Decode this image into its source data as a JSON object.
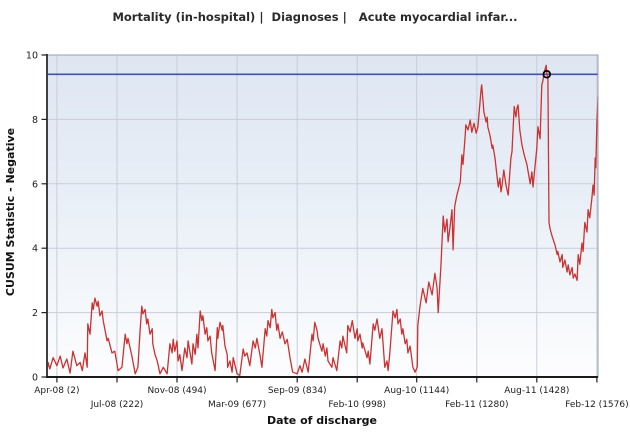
{
  "chart_data": {
    "type": "line",
    "title": "Mortality (in-hospital) |  Diagnoses |   Acute myocardial infar...",
    "xlabel": "Date of discharge",
    "ylabel": "CUSUM Statistic - Negative",
    "ylim": [
      0,
      10
    ],
    "y_ticks": [
      0,
      2,
      4,
      6,
      8,
      10
    ],
    "y_gridlines": [
      2,
      4,
      6,
      8
    ],
    "grid": true,
    "legend_position": "none",
    "plot_bg_gradient": [
      "#dee6f2",
      "#e9eff7",
      "#f5f8fb",
      "#fdfdfe"
    ],
    "grid_color": "#c8cdd9",
    "border_color": "#9aa2b2",
    "axis_line_color": "#1a1a1c",
    "label_color": "#1c1c1c",
    "title_color": "#2b2b2b",
    "x_ticks": [
      {
        "label": "Apr-08 (2)",
        "f": 0.018,
        "row": 0
      },
      {
        "label": "Jul-08 (222)",
        "f": 0.127,
        "row": 1
      },
      {
        "label": "Nov-08 (494)",
        "f": 0.236,
        "row": 0
      },
      {
        "label": "Mar-09 (677)",
        "f": 0.345,
        "row": 1
      },
      {
        "label": "Sep-09 (834)",
        "f": 0.454,
        "row": 0
      },
      {
        "label": "Feb-10 (998)",
        "f": 0.563,
        "row": 1
      },
      {
        "label": "Aug-10 (1144)",
        "f": 0.671,
        "row": 0
      },
      {
        "label": "Feb-11 (1280)",
        "f": 0.78,
        "row": 1
      },
      {
        "label": "Aug-11 (1428)",
        "f": 0.889,
        "row": 0
      },
      {
        "label": "Feb-12 (1576)",
        "f": 0.998,
        "row": 1
      }
    ],
    "threshold": {
      "value": 9.4,
      "color": "#4152ad"
    },
    "signal_point": {
      "x": 0.907,
      "value": 9.4,
      "marker": "open-circle",
      "color": "#000000"
    },
    "series": [
      {
        "color": "#cb3232",
        "points": [
          [
            0.0,
            0.2
          ],
          [
            0.002,
            0.45
          ],
          [
            0.005,
            0.25
          ],
          [
            0.011,
            0.6
          ],
          [
            0.018,
            0.35
          ],
          [
            0.024,
            0.65
          ],
          [
            0.029,
            0.28
          ],
          [
            0.036,
            0.56
          ],
          [
            0.042,
            0.12
          ],
          [
            0.047,
            0.8
          ],
          [
            0.054,
            0.35
          ],
          [
            0.06,
            0.45
          ],
          [
            0.064,
            0.2
          ],
          [
            0.069,
            0.75
          ],
          [
            0.073,
            0.3
          ],
          [
            0.074,
            1.65
          ],
          [
            0.078,
            1.33
          ],
          [
            0.082,
            2.3
          ],
          [
            0.084,
            2.1
          ],
          [
            0.087,
            2.45
          ],
          [
            0.091,
            2.2
          ],
          [
            0.093,
            2.35
          ],
          [
            0.096,
            1.9
          ],
          [
            0.1,
            2.05
          ],
          [
            0.102,
            1.75
          ],
          [
            0.109,
            1.12
          ],
          [
            0.111,
            1.2
          ],
          [
            0.118,
            0.75
          ],
          [
            0.123,
            0.8
          ],
          [
            0.129,
            0.2
          ],
          [
            0.136,
            0.3
          ],
          [
            0.142,
            1.33
          ],
          [
            0.145,
            1.03
          ],
          [
            0.147,
            1.2
          ],
          [
            0.154,
            0.65
          ],
          [
            0.16,
            0.1
          ],
          [
            0.165,
            0.3
          ],
          [
            0.169,
            1.45
          ],
          [
            0.172,
            2.2
          ],
          [
            0.174,
            1.96
          ],
          [
            0.178,
            2.1
          ],
          [
            0.181,
            1.65
          ],
          [
            0.183,
            1.8
          ],
          [
            0.187,
            1.33
          ],
          [
            0.191,
            1.5
          ],
          [
            0.192,
            1.03
          ],
          [
            0.196,
            0.7
          ],
          [
            0.2,
            0.5
          ],
          [
            0.205,
            0.1
          ],
          [
            0.211,
            0.3
          ],
          [
            0.218,
            0.1
          ],
          [
            0.223,
            1.03
          ],
          [
            0.227,
            0.75
          ],
          [
            0.229,
            1.17
          ],
          [
            0.232,
            0.8
          ],
          [
            0.236,
            1.12
          ],
          [
            0.238,
            0.5
          ],
          [
            0.241,
            0.7
          ],
          [
            0.245,
            0.2
          ],
          [
            0.25,
            0.9
          ],
          [
            0.254,
            0.6
          ],
          [
            0.256,
            1.12
          ],
          [
            0.263,
            0.4
          ],
          [
            0.265,
            1.03
          ],
          [
            0.269,
            0.7
          ],
          [
            0.272,
            1.33
          ],
          [
            0.274,
            0.9
          ],
          [
            0.278,
            2.05
          ],
          [
            0.281,
            1.75
          ],
          [
            0.283,
            1.9
          ],
          [
            0.287,
            1.33
          ],
          [
            0.29,
            1.53
          ],
          [
            0.292,
            1.12
          ],
          [
            0.296,
            1.27
          ],
          [
            0.299,
            0.75
          ],
          [
            0.305,
            0.2
          ],
          [
            0.309,
            1.53
          ],
          [
            0.31,
            1.2
          ],
          [
            0.314,
            1.7
          ],
          [
            0.318,
            1.45
          ],
          [
            0.319,
            1.6
          ],
          [
            0.323,
            0.96
          ],
          [
            0.327,
            0.7
          ],
          [
            0.328,
            0.3
          ],
          [
            0.332,
            0.5
          ],
          [
            0.336,
            0.15
          ],
          [
            0.338,
            0.6
          ],
          [
            0.345,
            0.1
          ],
          [
            0.35,
            0.05
          ],
          [
            0.356,
            0.87
          ],
          [
            0.359,
            0.65
          ],
          [
            0.363,
            0.75
          ],
          [
            0.368,
            0.35
          ],
          [
            0.374,
            1.12
          ],
          [
            0.378,
            0.9
          ],
          [
            0.381,
            1.2
          ],
          [
            0.387,
            0.65
          ],
          [
            0.39,
            0.3
          ],
          [
            0.396,
            1.5
          ],
          [
            0.399,
            1.27
          ],
          [
            0.401,
            1.75
          ],
          [
            0.405,
            1.53
          ],
          [
            0.408,
            2.1
          ],
          [
            0.41,
            1.84
          ],
          [
            0.414,
            2.0
          ],
          [
            0.417,
            1.45
          ],
          [
            0.419,
            1.65
          ],
          [
            0.423,
            1.2
          ],
          [
            0.427,
            1.4
          ],
          [
            0.432,
            1.03
          ],
          [
            0.436,
            1.17
          ],
          [
            0.441,
            0.6
          ],
          [
            0.446,
            0.15
          ],
          [
            0.454,
            0.1
          ],
          [
            0.459,
            0.35
          ],
          [
            0.463,
            0.15
          ],
          [
            0.468,
            0.56
          ],
          [
            0.474,
            0.15
          ],
          [
            0.481,
            1.33
          ],
          [
            0.483,
            1.12
          ],
          [
            0.486,
            1.7
          ],
          [
            0.49,
            1.45
          ],
          [
            0.492,
            1.2
          ],
          [
            0.499,
            0.8
          ],
          [
            0.501,
            1.03
          ],
          [
            0.505,
            0.65
          ],
          [
            0.508,
            0.9
          ],
          [
            0.51,
            0.5
          ],
          [
            0.517,
            0.3
          ],
          [
            0.519,
            0.6
          ],
          [
            0.526,
            0.2
          ],
          [
            0.532,
            1.12
          ],
          [
            0.535,
            0.9
          ],
          [
            0.537,
            1.27
          ],
          [
            0.544,
            0.75
          ],
          [
            0.546,
            1.6
          ],
          [
            0.55,
            1.4
          ],
          [
            0.554,
            1.75
          ],
          [
            0.559,
            1.2
          ],
          [
            0.563,
            1.5
          ],
          [
            0.564,
            1.12
          ],
          [
            0.568,
            1.33
          ],
          [
            0.572,
            0.9
          ],
          [
            0.573,
            1.06
          ],
          [
            0.581,
            0.6
          ],
          [
            0.583,
            0.8
          ],
          [
            0.586,
            0.4
          ],
          [
            0.592,
            1.65
          ],
          [
            0.595,
            1.45
          ],
          [
            0.599,
            1.8
          ],
          [
            0.604,
            1.2
          ],
          [
            0.608,
            1.5
          ],
          [
            0.613,
            0.3
          ],
          [
            0.617,
            0.5
          ],
          [
            0.619,
            0.2
          ],
          [
            0.622,
            0.7
          ],
          [
            0.628,
            2.05
          ],
          [
            0.632,
            1.84
          ],
          [
            0.635,
            2.1
          ],
          [
            0.637,
            1.65
          ],
          [
            0.641,
            1.8
          ],
          [
            0.644,
            1.33
          ],
          [
            0.646,
            1.5
          ],
          [
            0.65,
            1.03
          ],
          [
            0.653,
            1.17
          ],
          [
            0.655,
            0.75
          ],
          [
            0.659,
            0.96
          ],
          [
            0.662,
            0.56
          ],
          [
            0.664,
            0.3
          ],
          [
            0.668,
            0.15
          ],
          [
            0.672,
            0.32
          ],
          [
            0.673,
            1.6
          ],
          [
            0.677,
            2.2
          ],
          [
            0.682,
            2.75
          ],
          [
            0.688,
            2.3
          ],
          [
            0.693,
            2.95
          ],
          [
            0.699,
            2.55
          ],
          [
            0.704,
            3.22
          ],
          [
            0.708,
            2.75
          ],
          [
            0.71,
            2.0
          ],
          [
            0.715,
            3.5
          ],
          [
            0.719,
            5.0
          ],
          [
            0.722,
            4.5
          ],
          [
            0.726,
            4.9
          ],
          [
            0.728,
            4.2
          ],
          [
            0.731,
            4.6
          ],
          [
            0.735,
            5.2
          ],
          [
            0.737,
            3.95
          ],
          [
            0.74,
            5.3
          ],
          [
            0.744,
            5.65
          ],
          [
            0.75,
            6.06
          ],
          [
            0.753,
            6.9
          ],
          [
            0.755,
            6.6
          ],
          [
            0.759,
            7.5
          ],
          [
            0.76,
            7.83
          ],
          [
            0.764,
            7.67
          ],
          [
            0.768,
            7.98
          ],
          [
            0.771,
            7.6
          ],
          [
            0.775,
            7.88
          ],
          [
            0.779,
            7.57
          ],
          [
            0.782,
            7.77
          ],
          [
            0.788,
            8.97
          ],
          [
            0.789,
            9.07
          ],
          [
            0.793,
            8.23
          ],
          [
            0.797,
            7.92
          ],
          [
            0.799,
            8.07
          ],
          [
            0.8,
            7.77
          ],
          [
            0.804,
            7.5
          ],
          [
            0.808,
            7.1
          ],
          [
            0.809,
            7.2
          ],
          [
            0.813,
            6.8
          ],
          [
            0.817,
            6.18
          ],
          [
            0.819,
            5.9
          ],
          [
            0.822,
            6.18
          ],
          [
            0.824,
            5.75
          ],
          [
            0.826,
            5.96
          ],
          [
            0.829,
            6.43
          ],
          [
            0.833,
            5.96
          ],
          [
            0.837,
            5.65
          ],
          [
            0.839,
            6.12
          ],
          [
            0.842,
            6.8
          ],
          [
            0.844,
            7.0
          ],
          [
            0.848,
            8.4
          ],
          [
            0.851,
            8.07
          ],
          [
            0.853,
            8.35
          ],
          [
            0.855,
            8.45
          ],
          [
            0.858,
            7.67
          ],
          [
            0.862,
            7.2
          ],
          [
            0.866,
            6.9
          ],
          [
            0.871,
            6.6
          ],
          [
            0.877,
            6.0
          ],
          [
            0.88,
            6.37
          ],
          [
            0.882,
            5.9
          ],
          [
            0.886,
            6.6
          ],
          [
            0.889,
            7.1
          ],
          [
            0.891,
            7.77
          ],
          [
            0.895,
            7.4
          ],
          [
            0.898,
            9.07
          ],
          [
            0.9,
            9.2
          ],
          [
            0.902,
            9.44
          ],
          [
            0.906,
            9.68
          ],
          [
            0.907,
            9.4
          ],
          [
            0.909,
            9.3
          ],
          [
            0.911,
            4.8
          ],
          [
            0.913,
            4.6
          ],
          [
            0.917,
            4.35
          ],
          [
            0.922,
            4.1
          ],
          [
            0.926,
            3.8
          ],
          [
            0.927,
            3.9
          ],
          [
            0.931,
            3.57
          ],
          [
            0.935,
            3.8
          ],
          [
            0.936,
            3.4
          ],
          [
            0.94,
            3.63
          ],
          [
            0.944,
            3.26
          ],
          [
            0.946,
            3.48
          ],
          [
            0.949,
            3.17
          ],
          [
            0.953,
            3.4
          ],
          [
            0.955,
            3.07
          ],
          [
            0.958,
            3.2
          ],
          [
            0.962,
            3.0
          ],
          [
            0.964,
            3.8
          ],
          [
            0.967,
            3.5
          ],
          [
            0.971,
            4.16
          ],
          [
            0.973,
            3.9
          ],
          [
            0.976,
            4.8
          ],
          [
            0.98,
            4.5
          ],
          [
            0.982,
            5.2
          ],
          [
            0.985,
            4.94
          ],
          [
            0.989,
            5.56
          ],
          [
            0.991,
            5.96
          ],
          [
            0.993,
            5.65
          ],
          [
            0.995,
            6.8
          ],
          [
            0.996,
            6.5
          ],
          [
            0.998,
            7.9
          ],
          [
            1.0,
            8.7
          ]
        ]
      }
    ]
  }
}
